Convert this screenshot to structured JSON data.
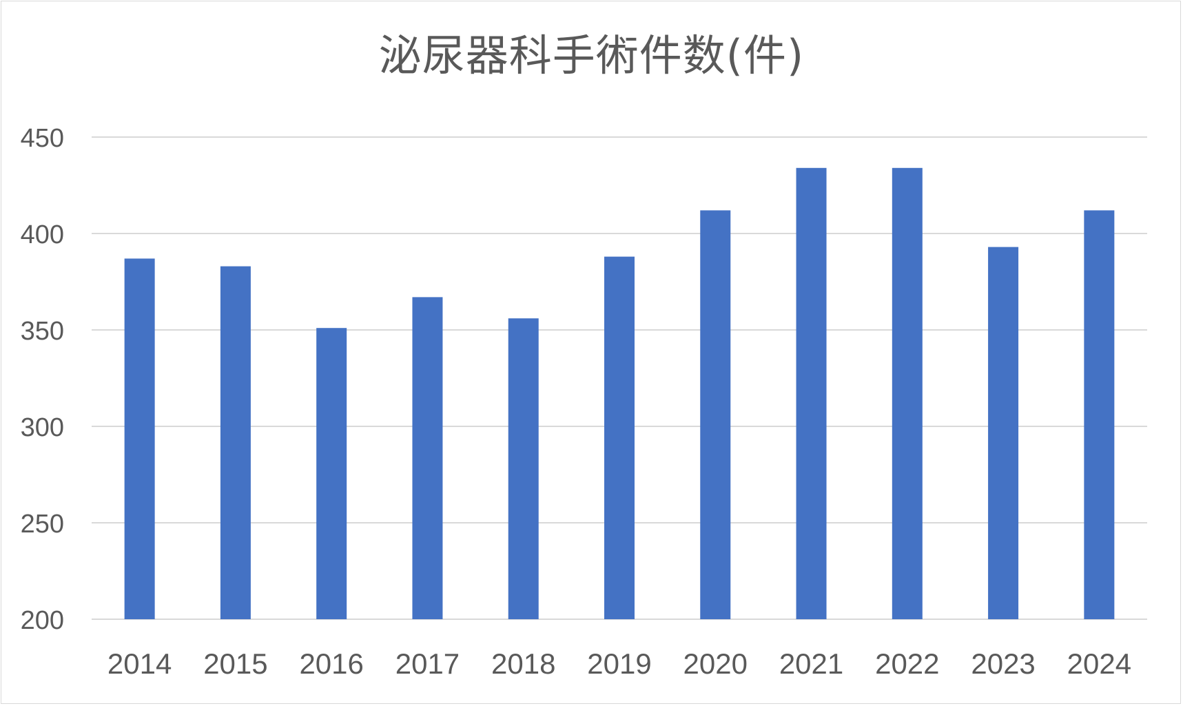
{
  "chart_data": {
    "type": "bar",
    "title": "泌尿器科手術件数(件)",
    "xlabel": "",
    "ylabel": "",
    "categories": [
      "2014",
      "2015",
      "2016",
      "2017",
      "2018",
      "2019",
      "2020",
      "2021",
      "2022",
      "2023",
      "2024"
    ],
    "values": [
      387,
      383,
      351,
      367,
      356,
      388,
      412,
      434,
      434,
      393,
      412
    ],
    "ylim": [
      200,
      450
    ],
    "yticks": [
      "200",
      "250",
      "300",
      "350",
      "400",
      "450"
    ],
    "grid": true,
    "legend": "none",
    "bar_color": "#4472c4",
    "grid_color": "#d9d9d9",
    "text_color": "#595959"
  }
}
